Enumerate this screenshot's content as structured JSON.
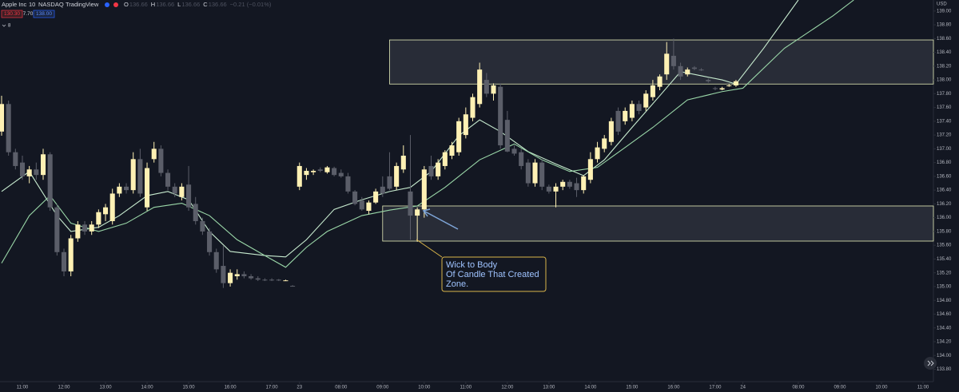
{
  "chart_data": {
    "type": "candlestick",
    "title": "Apple Inc",
    "interval": "10",
    "exchange": "NASDAQ",
    "source": "TradingView",
    "ohlc_header": [
      "O",
      "136.66",
      "H",
      "136.66",
      "L",
      "136.66",
      "C",
      "136.66",
      "−0.21 (−0.01%)"
    ],
    "badges": [
      "130.30",
      "7.70",
      "138.00"
    ],
    "indicator_row": "8",
    "currency": "USD",
    "up_color": "#fff1b4",
    "down_color": "#5b5e69",
    "xlim": [
      -0.23,
      134.5
    ],
    "ylim": [
      133.62,
      139.16
    ],
    "xticks": [
      {
        "value": 3,
        "label": "11:00"
      },
      {
        "value": 9,
        "label": "12:00"
      },
      {
        "value": 15,
        "label": "13:00"
      },
      {
        "value": 21,
        "label": "14:00"
      },
      {
        "value": 27,
        "label": "15:00"
      },
      {
        "value": 33,
        "label": "16:00"
      },
      {
        "value": 39,
        "label": "17:00"
      },
      {
        "value": 43,
        "label": "23"
      },
      {
        "value": 49,
        "label": "08:00"
      },
      {
        "value": 55,
        "label": "09:00"
      },
      {
        "value": 61,
        "label": "10:00"
      },
      {
        "value": 67,
        "label": "11:00"
      },
      {
        "value": 73,
        "label": "12:00"
      },
      {
        "value": 79,
        "label": "13:00"
      },
      {
        "value": 85,
        "label": "14:00"
      },
      {
        "value": 91,
        "label": "15:00"
      },
      {
        "value": 97,
        "label": "16:00"
      },
      {
        "value": 103,
        "label": "17:00"
      },
      {
        "value": 107,
        "label": "24"
      },
      {
        "value": 115,
        "label": "08:00"
      },
      {
        "value": 121,
        "label": "09:00"
      },
      {
        "value": 127,
        "label": "10:00"
      },
      {
        "value": 133,
        "label": "11:00"
      }
    ],
    "yticks": [
      {
        "value": 133.8,
        "label": "133.80"
      },
      {
        "value": 134,
        "label": "134.00"
      },
      {
        "value": 134.2,
        "label": "134.20"
      },
      {
        "value": 134.4,
        "label": "134.40"
      },
      {
        "value": 134.6,
        "label": "134.60"
      },
      {
        "value": 134.8,
        "label": "134.80"
      },
      {
        "value": 135,
        "label": "135.00"
      },
      {
        "value": 135.2,
        "label": "135.20"
      },
      {
        "value": 135.4,
        "label": "135.40"
      },
      {
        "value": 135.6,
        "label": "135.60"
      },
      {
        "value": 135.8,
        "label": "135.80"
      },
      {
        "value": 136,
        "label": "136.00"
      },
      {
        "value": 136.2,
        "label": "136.20"
      },
      {
        "value": 136.4,
        "label": "136.40"
      },
      {
        "value": 136.6,
        "label": "136.60"
      },
      {
        "value": 136.8,
        "label": "136.80"
      },
      {
        "value": 137,
        "label": "137.00"
      },
      {
        "value": 137.2,
        "label": "137.20"
      },
      {
        "value": 137.4,
        "label": "137.40"
      },
      {
        "value": 137.6,
        "label": "137.60"
      },
      {
        "value": 137.8,
        "label": "137.80"
      },
      {
        "value": 138,
        "label": "138.00"
      },
      {
        "value": 138.2,
        "label": "138.20"
      },
      {
        "value": 138.4,
        "label": "138.40"
      },
      {
        "value": 138.6,
        "label": "138.60"
      },
      {
        "value": 138.8,
        "label": "138.80"
      },
      {
        "value": 139,
        "label": "139.00"
      }
    ],
    "grid": false,
    "x": [
      0,
      1,
      2,
      3,
      4,
      5,
      6,
      7,
      8,
      9,
      10,
      11,
      12,
      13,
      14,
      15,
      16,
      17,
      18,
      19,
      20,
      21,
      22,
      23,
      24,
      25,
      26,
      27,
      28,
      29,
      30,
      31,
      32,
      33,
      34,
      35,
      36,
      37,
      38,
      39,
      40,
      41,
      42,
      43,
      44,
      45,
      46,
      47,
      48,
      49,
      50,
      51,
      52,
      53,
      54,
      55,
      56,
      57,
      58,
      59,
      60,
      61,
      62,
      63,
      64,
      65,
      66,
      67,
      68,
      69,
      70,
      71,
      72,
      73,
      74,
      75,
      76,
      77,
      78,
      79,
      80,
      81,
      82,
      83,
      84,
      85,
      86,
      87,
      88,
      89,
      90,
      91,
      92,
      93,
      94,
      95,
      96,
      97,
      98,
      99,
      100,
      101,
      102,
      103,
      104,
      105,
      106
    ],
    "open": [
      137.25,
      137.65,
      136.95,
      136.8,
      136.6,
      136.7,
      136.62,
      136.92,
      136.15,
      135.5,
      135.22,
      135.7,
      135.9,
      135.8,
      135.9,
      136.05,
      135.95,
      136.35,
      136.45,
      136.4,
      136.85,
      136.15,
      136.85,
      137.0,
      136.65,
      136.45,
      136.3,
      136.48,
      136.2,
      135.95,
      135.8,
      135.5,
      135.3,
      135.05,
      135.15,
      135.18,
      135.15,
      135.12,
      135.1,
      135.1,
      135.1,
      135.09,
      135.01,
      136.45,
      136.62,
      136.66,
      136.7,
      136.66,
      136.72,
      136.65,
      136.6,
      136.38,
      136.25,
      136.1,
      136.22,
      136.45,
      136.6,
      136.45,
      136.7,
      136.38,
      136.03,
      136.12,
      136.75,
      136.6,
      136.75,
      136.9,
      136.95,
      137.2,
      137.45,
      137.65,
      138.0,
      137.8,
      137.9,
      137.42,
      137.0,
      136.95,
      136.8,
      136.5,
      136.8,
      136.45,
      136.38,
      136.45,
      136.52,
      136.5,
      136.4,
      136.55,
      136.85,
      137.0,
      137.1,
      137.55,
      137.4,
      137.45,
      137.65,
      137.6,
      137.75,
      137.9,
      138.08,
      138.35,
      138.2,
      138.08,
      138.18,
      138.15,
      138.0,
      137.88,
      137.86,
      137.92,
      137.92
    ],
    "high": [
      137.77,
      137.7,
      137.0,
      136.9,
      136.75,
      136.8,
      137.0,
      136.95,
      136.2,
      135.55,
      135.75,
      135.95,
      135.95,
      135.95,
      136.12,
      136.2,
      136.42,
      136.5,
      136.5,
      136.95,
      137.0,
      136.8,
      137.1,
      137.05,
      136.7,
      136.5,
      136.5,
      136.75,
      136.3,
      136.0,
      135.85,
      135.55,
      135.6,
      135.25,
      135.25,
      135.22,
      135.18,
      135.15,
      135.12,
      135.12,
      135.11,
      135.1,
      135.02,
      136.8,
      136.72,
      136.7,
      136.73,
      136.75,
      136.74,
      136.7,
      136.65,
      136.4,
      136.3,
      136.25,
      136.42,
      136.6,
      136.95,
      136.8,
      137.05,
      137.2,
      136.15,
      136.75,
      136.9,
      136.85,
      136.98,
      137.1,
      137.45,
      137.6,
      137.8,
      138.25,
      138.1,
      137.95,
      137.95,
      137.55,
      137.05,
      137.0,
      136.85,
      136.85,
      136.85,
      136.48,
      136.5,
      136.55,
      136.55,
      136.58,
      136.62,
      136.95,
      137.1,
      137.2,
      137.45,
      137.6,
      137.6,
      137.7,
      137.7,
      137.85,
      138.0,
      138.08,
      138.55,
      138.6,
      138.25,
      138.18,
      138.2,
      138.17,
      138.02,
      137.9,
      137.9,
      137.94,
      138.0
    ],
    "low": [
      137.19,
      136.9,
      136.7,
      136.55,
      136.5,
      136.55,
      136.55,
      136.1,
      135.45,
      135.15,
      135.15,
      135.65,
      135.75,
      135.75,
      135.85,
      135.95,
      135.9,
      136.3,
      136.35,
      136.35,
      136.3,
      136.1,
      136.8,
      136.6,
      136.4,
      136.3,
      136.25,
      136.1,
      135.9,
      135.75,
      135.45,
      135.2,
      134.98,
      135.0,
      135.1,
      135.12,
      135.1,
      135.08,
      135.08,
      135.08,
      135.08,
      135.08,
      135.0,
      136.4,
      136.55,
      136.62,
      136.66,
      136.64,
      136.6,
      136.58,
      136.35,
      136.18,
      136.1,
      136.05,
      136.2,
      136.3,
      136.4,
      136.4,
      136.65,
      135.68,
      135.65,
      136.0,
      136.55,
      136.55,
      136.7,
      136.85,
      136.9,
      137.15,
      137.4,
      137.6,
      137.75,
      137.7,
      137.0,
      136.95,
      136.9,
      136.7,
      136.45,
      136.45,
      136.4,
      136.35,
      136.15,
      136.4,
      136.42,
      136.3,
      136.35,
      136.5,
      136.8,
      136.95,
      137.05,
      137.2,
      137.35,
      137.4,
      137.5,
      137.55,
      137.7,
      137.85,
      138.0,
      138.15,
      138.0,
      138.05,
      138.14,
      138.13,
      137.96,
      137.85,
      137.85,
      137.9,
      137.9
    ],
    "close": [
      137.65,
      136.95,
      136.75,
      136.6,
      136.7,
      136.62,
      136.92,
      136.15,
      135.5,
      135.22,
      135.7,
      135.9,
      135.8,
      135.9,
      136.08,
      136.15,
      136.35,
      136.45,
      136.4,
      136.85,
      136.35,
      136.72,
      137.0,
      136.65,
      136.45,
      136.35,
      136.45,
      136.15,
      135.95,
      135.8,
      135.5,
      135.25,
      135.05,
      135.2,
      135.18,
      135.15,
      135.12,
      135.1,
      135.09,
      135.09,
      135.09,
      135.09,
      135.0,
      136.75,
      136.68,
      136.68,
      136.68,
      136.73,
      136.62,
      136.6,
      136.38,
      136.2,
      136.12,
      136.22,
      136.38,
      136.35,
      136.42,
      136.75,
      136.9,
      136.03,
      136.12,
      136.7,
      136.6,
      136.8,
      136.95,
      137.05,
      137.4,
      137.5,
      137.75,
      138.15,
      137.8,
      137.92,
      137.05,
      136.96,
      136.93,
      136.75,
      136.5,
      136.8,
      136.45,
      136.38,
      136.45,
      136.52,
      136.45,
      136.4,
      136.6,
      136.85,
      137.02,
      137.15,
      137.4,
      137.25,
      137.55,
      137.65,
      137.55,
      137.8,
      137.92,
      138.05,
      138.38,
      138.2,
      138.05,
      138.15,
      138.16,
      138.14,
      137.98,
      137.87,
      137.88,
      137.92,
      137.98
    ],
    "series": [
      {
        "color": "#c8ecd0",
        "x": [
          0,
          4,
          8,
          10,
          14,
          17,
          21,
          24,
          27,
          30,
          33,
          38,
          41,
          44,
          48,
          52,
          56,
          59,
          62,
          66,
          69,
          72,
          76,
          80,
          84,
          87,
          91,
          95,
          98,
          101,
          104,
          106,
          110,
          115
        ],
        "values": [
          136.38,
          136.67,
          136.03,
          135.8,
          135.86,
          136.03,
          136.32,
          136.38,
          136.26,
          135.8,
          135.51,
          135.45,
          135.43,
          135.68,
          136.12,
          136.26,
          136.38,
          136.44,
          136.67,
          137.19,
          137.42,
          137.25,
          136.96,
          136.78,
          136.61,
          136.84,
          137.31,
          137.77,
          138.12,
          138.06,
          138.0,
          137.94,
          138.46,
          139.16
        ]
      },
      {
        "color": "#9ad7a8",
        "x": [
          0,
          4,
          7,
          10,
          14,
          18,
          22,
          26,
          30,
          34,
          38,
          41,
          44,
          47,
          52,
          56,
          60,
          64,
          69,
          74,
          78,
          82,
          86,
          90,
          94,
          99,
          104,
          107,
          113,
          120,
          123
        ],
        "values": [
          135.34,
          136.03,
          136.32,
          135.92,
          135.8,
          135.92,
          136.15,
          136.21,
          136.03,
          135.68,
          135.45,
          135.28,
          135.57,
          135.8,
          136.03,
          136.11,
          136.17,
          136.44,
          136.84,
          137.07,
          136.84,
          136.67,
          136.73,
          137.02,
          137.31,
          137.71,
          137.83,
          137.88,
          138.46,
          138.93,
          139.16
        ]
      }
    ],
    "zones": [
      {
        "x_start": 56,
        "low": 137.94,
        "high": 138.58
      },
      {
        "x_start": 55,
        "low": 135.66,
        "high": 136.17
      }
    ],
    "annotation": [
      "Wick to Body",
      "Of Candle That Created",
      "Zone."
    ]
  }
}
